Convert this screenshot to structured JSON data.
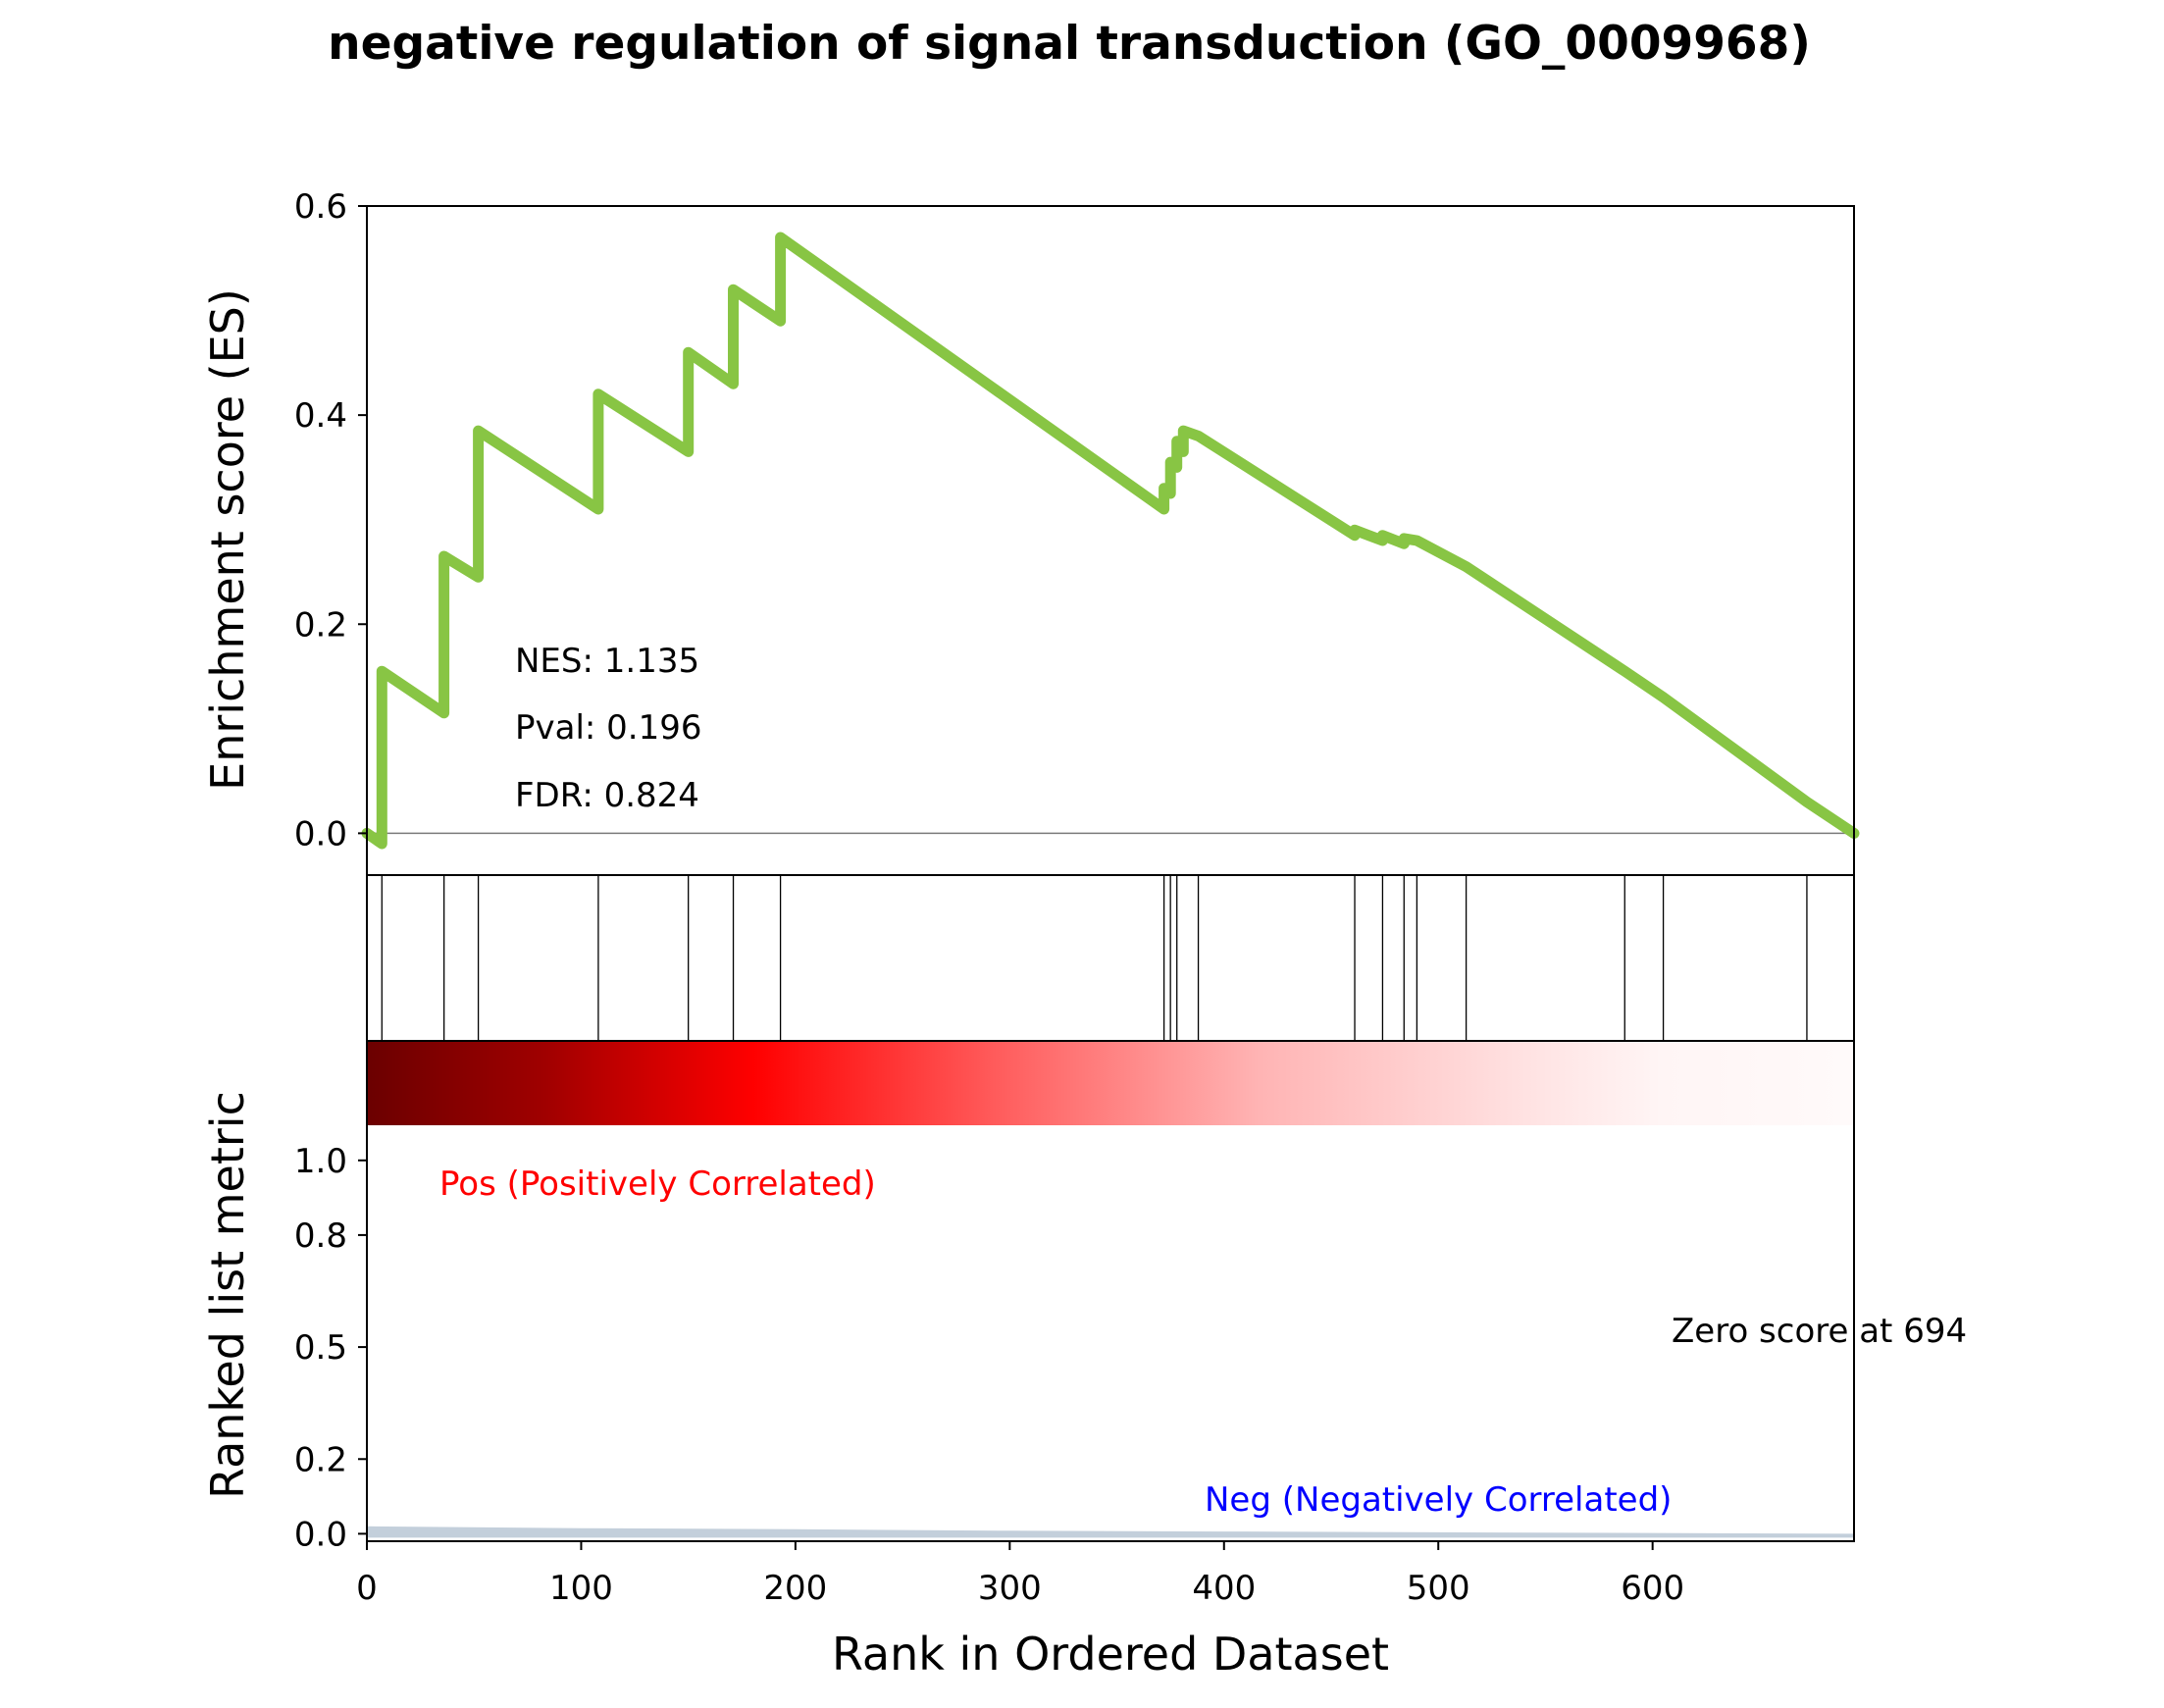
{
  "title": "negative regulation of signal transduction (GO_0009968)",
  "chart_data": {
    "type": "line",
    "title": "negative regulation of signal transduction (GO_0009968)",
    "xlabel": "Rank in Ordered Dataset",
    "x_ticks": [
      "0",
      "100",
      "200",
      "300",
      "400",
      "500",
      "600"
    ],
    "xlim": [
      0,
      694
    ],
    "es_panel": {
      "ylabel": "Enrichment score (ES)",
      "y_ticks": [
        "0.0",
        "0.2",
        "0.4",
        "0.6"
      ],
      "ylim": [
        -0.04,
        0.6
      ],
      "line_color": "#88c544",
      "series": [
        {
          "x": [
            0,
            7,
            7,
            36,
            36,
            52,
            52,
            108,
            108,
            150,
            150,
            171,
            171,
            193,
            193,
            372,
            372,
            375,
            375,
            378,
            378,
            381,
            381,
            388,
            388,
            461,
            461,
            474,
            474,
            484,
            484,
            490,
            490,
            513,
            513,
            587,
            587,
            605,
            605,
            672,
            672,
            694
          ],
          "y": [
            0.0,
            -0.01,
            0.155,
            0.115,
            0.265,
            0.245,
            0.385,
            0.31,
            0.42,
            0.365,
            0.46,
            0.43,
            0.52,
            0.49,
            0.57,
            0.31,
            0.33,
            0.325,
            0.355,
            0.35,
            0.375,
            0.365,
            0.385,
            0.38,
            0.38,
            0.285,
            0.29,
            0.28,
            0.285,
            0.277,
            0.282,
            0.28,
            0.28,
            0.255,
            0.255,
            0.155,
            0.155,
            0.13,
            0.13,
            0.03,
            0.03,
            0.0
          ]
        }
      ],
      "annotations": [
        "NES: 1.135",
        "Pval: 0.196",
        "FDR: 0.824"
      ]
    },
    "hits_panel": {
      "hit_ranks": [
        7,
        36,
        52,
        108,
        150,
        171,
        193,
        372,
        375,
        378,
        388,
        461,
        474,
        484,
        490,
        513,
        587,
        605,
        672
      ]
    },
    "ranked_panel": {
      "ylabel": "Ranked list metric",
      "y_ticks": [
        "0.0",
        "0.2",
        "0.5",
        "0.8",
        "1.0"
      ],
      "ylim": [
        -0.02,
        1.32
      ],
      "metric_color": "#c3cfdb",
      "metric": {
        "x": [
          0,
          100,
          200,
          300,
          400,
          500,
          600,
          694
        ],
        "y": [
          0.02,
          0.015,
          0.012,
          0.008,
          0.006,
          0.004,
          0.002,
          0.0
        ]
      },
      "pos_label": "Pos (Positively Correlated)",
      "neg_label": "Neg (Negatively Correlated)",
      "zero_label": "Zero score at 694",
      "pos_color": "#ff0000",
      "neg_color": "#0000ff"
    }
  }
}
